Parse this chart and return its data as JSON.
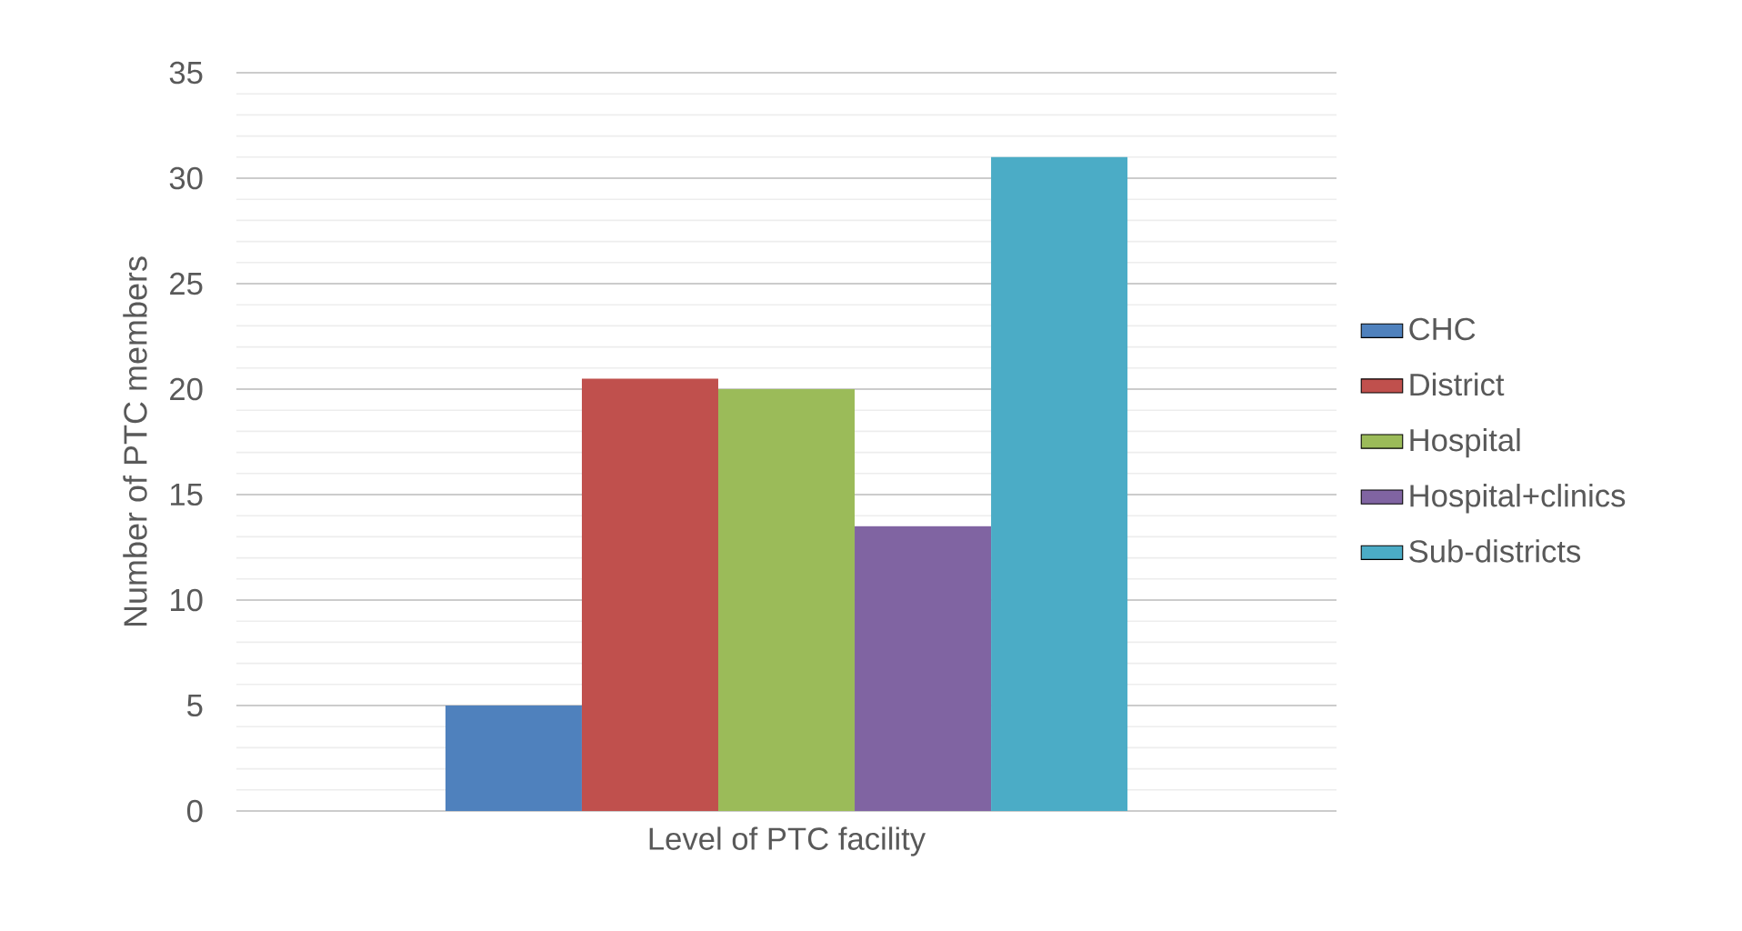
{
  "chart_data": {
    "type": "bar",
    "ylabel": "Number of PTC members",
    "categories": [
      "Level of PTC facility"
    ],
    "series": [
      {
        "name": "CHC",
        "color": "#4f81bd",
        "values": [
          5
        ]
      },
      {
        "name": "District",
        "color": "#c0504d",
        "values": [
          20.5
        ]
      },
      {
        "name": "Hospital",
        "color": "#9bbb59",
        "values": [
          20
        ]
      },
      {
        "name": "Hospital+clinics",
        "color": "#8064a2",
        "values": [
          13.5
        ]
      },
      {
        "name": "Sub-districts",
        "color": "#4bacc6",
        "values": [
          31
        ]
      }
    ],
    "ylim": [
      0,
      35
    ],
    "yticks": [
      0,
      5,
      10,
      15,
      20,
      25,
      30,
      35
    ],
    "grid": "y",
    "legend": "right"
  }
}
